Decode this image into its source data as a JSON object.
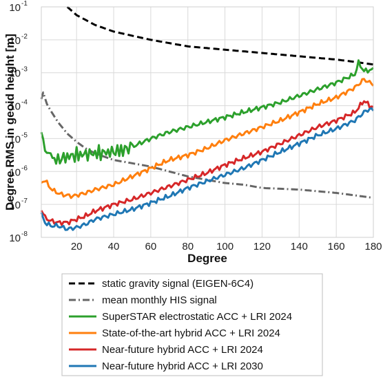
{
  "chart_data": {
    "type": "line",
    "xlabel": "Degree",
    "ylabel": "Degree RMS in geoid height [m]",
    "xlim": [
      1,
      180
    ],
    "ylim_log10": [
      -8,
      -1
    ],
    "y_scale": "log",
    "grid": true,
    "legend_placement": "below",
    "x_ticks": [
      "20",
      "40",
      "60",
      "80",
      "100",
      "120",
      "140",
      "160",
      "180"
    ],
    "y_ticks": [
      {
        "base": "10",
        "exp": "-8"
      },
      {
        "base": "10",
        "exp": "-7"
      },
      {
        "base": "10",
        "exp": "-6"
      },
      {
        "base": "10",
        "exp": "-5"
      },
      {
        "base": "10",
        "exp": "-4"
      },
      {
        "base": "10",
        "exp": "-3"
      },
      {
        "base": "10",
        "exp": "-2"
      },
      {
        "base": "10",
        "exp": "-1"
      }
    ],
    "series": [
      {
        "name": "static gravity signal (EIGEN-6C4)",
        "color": "#000000",
        "style": "dashed",
        "x": [
          15,
          20,
          30,
          40,
          60,
          80,
          100,
          120,
          140,
          160,
          170,
          180
        ],
        "y_log10": [
          -1.0,
          -1.25,
          -1.55,
          -1.75,
          -2.0,
          -2.2,
          -2.3,
          -2.4,
          -2.5,
          -2.6,
          -2.67,
          -2.75
        ]
      },
      {
        "name": "mean monthly HIS signal",
        "color": "#666666",
        "style": "dashdot",
        "x": [
          1,
          2,
          4,
          6,
          10,
          15,
          20,
          25,
          30,
          40,
          50,
          60,
          70,
          80,
          90,
          100,
          110,
          120,
          140,
          160,
          180
        ],
        "y_log10": [
          -3.8,
          -3.6,
          -3.95,
          -4.15,
          -4.5,
          -4.85,
          -5.1,
          -5.3,
          -5.45,
          -5.65,
          -5.75,
          -5.85,
          -6.0,
          -6.15,
          -6.25,
          -6.35,
          -6.4,
          -6.5,
          -6.55,
          -6.65,
          -6.8
        ]
      },
      {
        "name": "SuperSTAR electrostatic ACC + LRI 2024",
        "color": "#2ca02c",
        "style": "solid",
        "x": [
          1,
          3,
          6,
          10,
          15,
          20,
          30,
          40,
          45,
          50,
          60,
          70,
          80,
          90,
          100,
          110,
          120,
          130,
          140,
          150,
          160,
          170,
          172,
          175,
          180
        ],
        "y_log10": [
          -4.8,
          -5.35,
          -5.5,
          -5.65,
          -5.55,
          -5.5,
          -5.45,
          -5.4,
          -5.35,
          -5.25,
          -5.0,
          -4.8,
          -4.65,
          -4.5,
          -4.35,
          -4.2,
          -4.05,
          -3.9,
          -3.7,
          -3.5,
          -3.3,
          -3.05,
          -2.7,
          -2.95,
          -2.9
        ]
      },
      {
        "name": "State-of-the-art hybrid ACC + LRI 2024",
        "color": "#ff7f0e",
        "style": "solid",
        "x": [
          1,
          3,
          5,
          8,
          12,
          18,
          25,
          30,
          40,
          50,
          60,
          70,
          80,
          90,
          100,
          110,
          120,
          130,
          140,
          150,
          160,
          170,
          175,
          178,
          180
        ],
        "y_log10": [
          -6.35,
          -6.25,
          -6.45,
          -6.6,
          -6.7,
          -6.75,
          -6.65,
          -6.55,
          -6.4,
          -6.15,
          -5.9,
          -5.65,
          -5.5,
          -5.3,
          -5.05,
          -4.85,
          -4.65,
          -4.45,
          -4.2,
          -3.95,
          -3.75,
          -3.45,
          -3.2,
          -3.3,
          -3.35
        ]
      },
      {
        "name": "Near-future hybrid ACC + LRI 2024",
        "color": "#d62728",
        "style": "solid",
        "x": [
          1,
          3,
          6,
          10,
          15,
          20,
          25,
          30,
          40,
          50,
          60,
          70,
          80,
          90,
          100,
          110,
          120,
          130,
          140,
          150,
          160,
          170,
          175,
          178,
          180
        ],
        "y_log10": [
          -7.15,
          -7.4,
          -7.5,
          -7.55,
          -7.55,
          -7.45,
          -7.35,
          -7.2,
          -7.0,
          -6.85,
          -6.65,
          -6.45,
          -6.25,
          -6.05,
          -5.8,
          -5.6,
          -5.4,
          -5.15,
          -4.9,
          -4.65,
          -4.45,
          -4.2,
          -3.85,
          -4.0,
          -4.05
        ]
      },
      {
        "name": "Near-future hybrid ACC + LRI 2030",
        "color": "#1f77b4",
        "style": "solid",
        "x": [
          1,
          3,
          6,
          10,
          15,
          20,
          25,
          30,
          40,
          50,
          60,
          70,
          80,
          90,
          100,
          110,
          120,
          130,
          140,
          150,
          160,
          170,
          175,
          178,
          180
        ],
        "y_log10": [
          -7.3,
          -7.55,
          -7.65,
          -7.65,
          -7.75,
          -7.7,
          -7.6,
          -7.45,
          -7.3,
          -7.15,
          -6.95,
          -6.75,
          -6.5,
          -6.3,
          -6.1,
          -5.9,
          -5.65,
          -5.4,
          -5.15,
          -4.9,
          -4.7,
          -4.45,
          -4.2,
          -4.1,
          -4.15
        ]
      }
    ]
  }
}
